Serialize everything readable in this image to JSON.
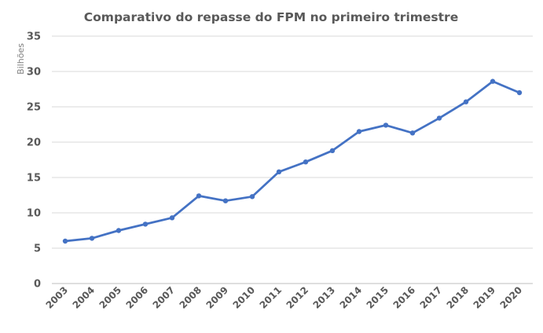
{
  "chart_data": {
    "type": "line",
    "title": "Comparativo  do repasse do FPM no primeiro  trimestre",
    "xlabel": "",
    "ylabel": "Bilhões",
    "ylim": [
      0,
      35
    ],
    "yticks": [
      0,
      5,
      10,
      15,
      20,
      25,
      30,
      35
    ],
    "grid": true,
    "legend": "none",
    "categories": [
      "2003",
      "2004",
      "2005",
      "2006",
      "2007",
      "2008",
      "2009",
      "2010",
      "2011",
      "2012",
      "2013",
      "2014",
      "2015",
      "2016",
      "2017",
      "2018",
      "2019",
      "2020"
    ],
    "series": [
      {
        "color": "#4472c4",
        "values": [
          6.0,
          6.4,
          7.5,
          8.4,
          9.3,
          12.4,
          11.7,
          12.3,
          15.8,
          17.2,
          18.8,
          21.5,
          22.4,
          21.3,
          23.4,
          25.7,
          28.6,
          27.0
        ]
      }
    ]
  }
}
